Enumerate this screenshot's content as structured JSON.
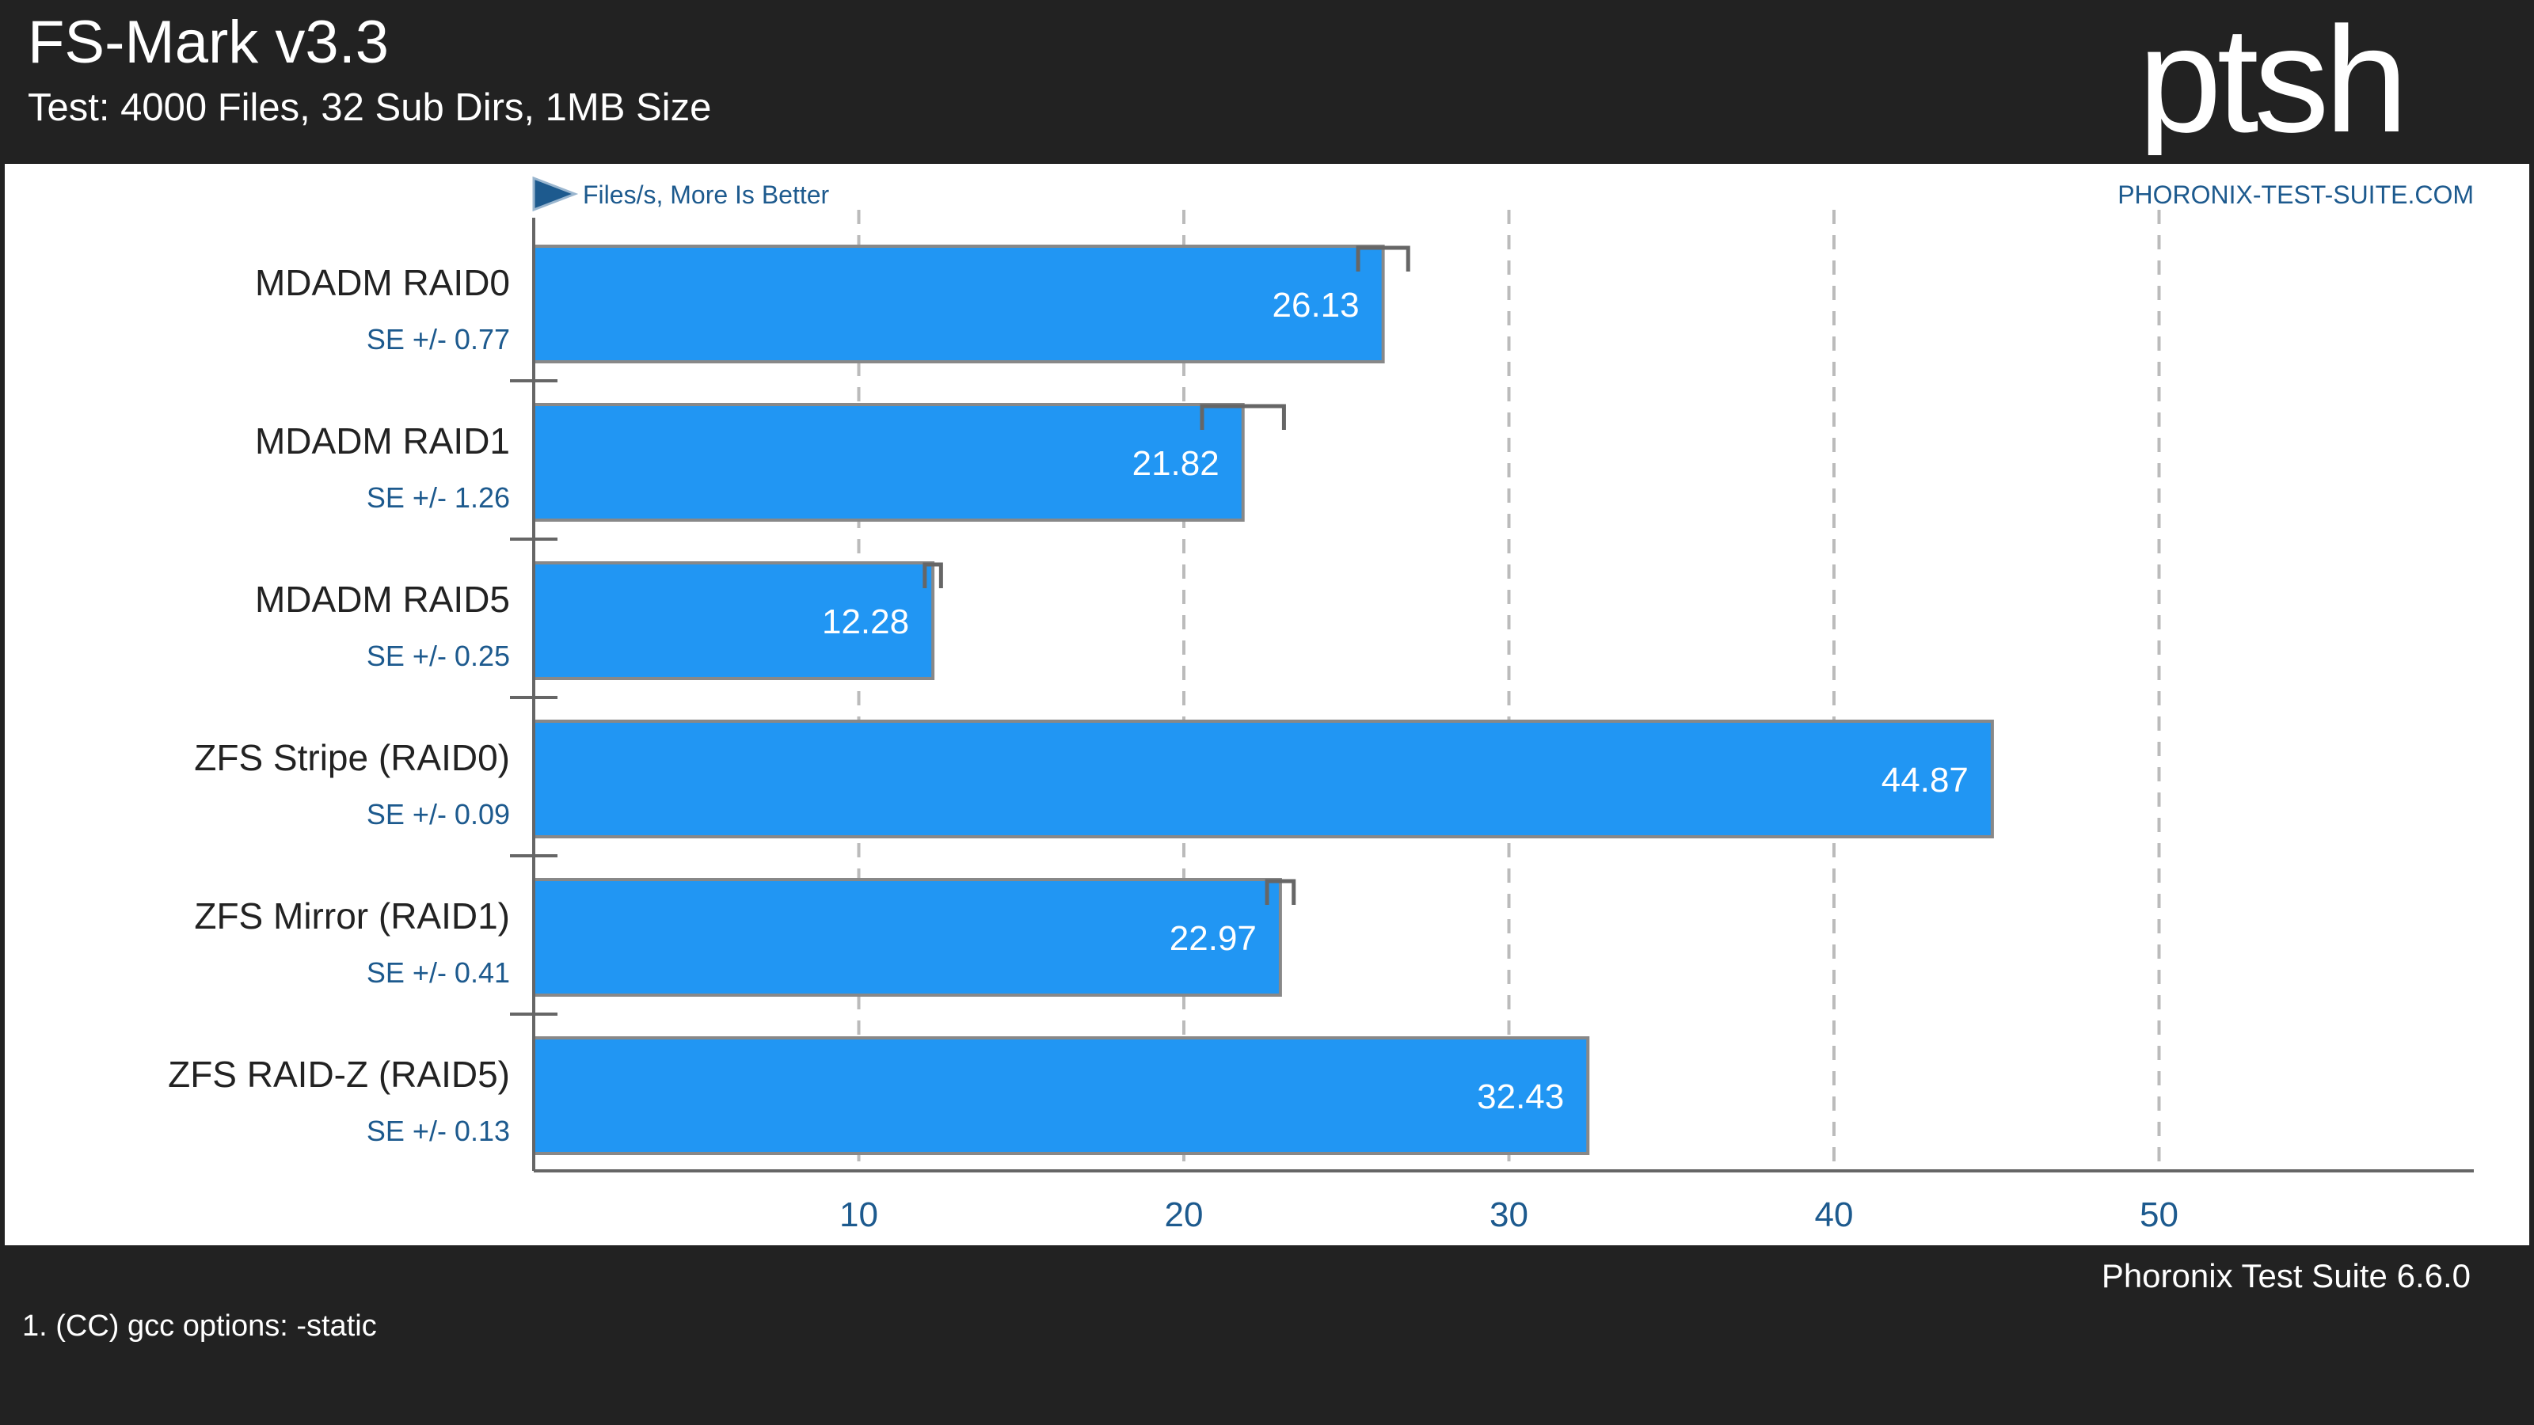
{
  "header": {
    "title": "FS-Mark v3.3",
    "subtitle": "Test: 4000 Files, 32 Sub Dirs, 1MB Size",
    "logo_text": "ptsh"
  },
  "chart_data": {
    "type": "bar",
    "orientation": "horizontal",
    "unit_note": "Files/s, More Is Better",
    "source_label": "PHORONIX-TEST-SUITE.COM",
    "categories": [
      "MDADM RAID0",
      "MDADM RAID1",
      "MDADM RAID5",
      "ZFS Stripe (RAID0)",
      "ZFS Mirror (RAID1)",
      "ZFS RAID-Z (RAID5)"
    ],
    "values": [
      26.13,
      21.82,
      12.28,
      44.87,
      22.97,
      32.43
    ],
    "value_labels": [
      "26.13",
      "21.82",
      "12.28",
      "44.87",
      "22.97",
      "32.43"
    ],
    "se": [
      0.77,
      1.26,
      0.25,
      0.09,
      0.41,
      0.13
    ],
    "se_labels": [
      "SE +/- 0.77",
      "SE +/- 1.26",
      "SE +/- 0.25",
      "SE +/- 0.09",
      "SE +/- 0.41",
      "SE +/- 0.13"
    ],
    "xticks": [
      10,
      20,
      30,
      40,
      50
    ],
    "xlim": [
      0,
      59.7
    ],
    "grid": "vertical dashed",
    "colors": {
      "bar": "#2196f3",
      "bar_border": "#888888",
      "axis": "#666666",
      "grid": "#bbbbbb",
      "accent_text": "#1d5a8e",
      "label_text": "#222222"
    }
  },
  "footer": {
    "version": "Phoronix Test Suite 6.6.0",
    "note": "1. (CC) gcc options: -static"
  }
}
